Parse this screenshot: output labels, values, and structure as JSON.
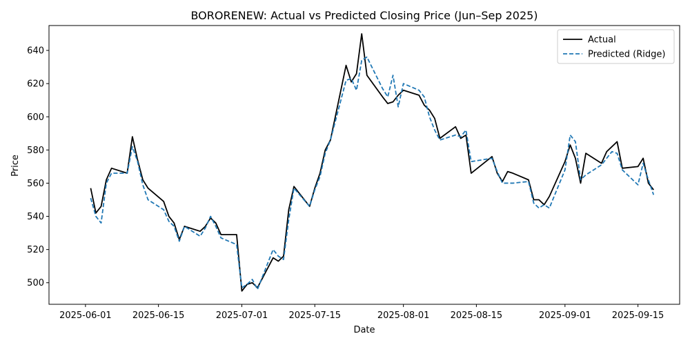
{
  "chart_data": {
    "type": "line",
    "title": "BORORENEW: Actual vs Predicted Closing Price (Jun–Sep 2025)",
    "xlabel": "Date",
    "ylabel": "Price",
    "xlim": [
      "2025-05-25",
      "2025-09-23"
    ],
    "ylim": [
      487,
      655
    ],
    "x_ticks": [
      "2025-06-01",
      "2025-06-15",
      "2025-07-01",
      "2025-07-15",
      "2025-08-01",
      "2025-08-15",
      "2025-09-01",
      "2025-09-15"
    ],
    "y_ticks": [
      500,
      520,
      540,
      560,
      580,
      600,
      620,
      640
    ],
    "grid": false,
    "legend_position": "top-right",
    "series": [
      {
        "name": "Actual",
        "color": "#000000",
        "style": "solid",
        "points": [
          [
            "2025-06-02",
            557
          ],
          [
            "2025-06-03",
            542
          ],
          [
            "2025-06-04",
            546
          ],
          [
            "2025-06-05",
            562
          ],
          [
            "2025-06-06",
            569
          ],
          [
            "2025-06-09",
            566
          ],
          [
            "2025-06-10",
            588
          ],
          [
            "2025-06-11",
            574
          ],
          [
            "2025-06-12",
            562
          ],
          [
            "2025-06-13",
            557
          ],
          [
            "2025-06-16",
            549
          ],
          [
            "2025-06-17",
            540
          ],
          [
            "2025-06-18",
            536
          ],
          [
            "2025-06-19",
            526
          ],
          [
            "2025-06-20",
            534
          ],
          [
            "2025-06-23",
            531
          ],
          [
            "2025-06-24",
            534
          ],
          [
            "2025-06-25",
            539
          ],
          [
            "2025-06-26",
            536
          ],
          [
            "2025-06-27",
            529
          ],
          [
            "2025-06-30",
            529
          ],
          [
            "2025-07-01",
            495
          ],
          [
            "2025-07-02",
            499
          ],
          [
            "2025-07-03",
            500
          ],
          [
            "2025-07-04",
            497
          ],
          [
            "2025-07-07",
            515
          ],
          [
            "2025-07-08",
            513
          ],
          [
            "2025-07-09",
            516
          ],
          [
            "2025-07-10",
            544
          ],
          [
            "2025-07-11",
            558
          ],
          [
            "2025-07-14",
            546
          ],
          [
            "2025-07-15",
            557
          ],
          [
            "2025-07-16",
            566
          ],
          [
            "2025-07-17",
            580
          ],
          [
            "2025-07-18",
            586
          ],
          [
            "2025-07-21",
            631
          ],
          [
            "2025-07-22",
            621
          ],
          [
            "2025-07-23",
            626
          ],
          [
            "2025-07-24",
            650
          ],
          [
            "2025-07-25",
            625
          ],
          [
            "2025-07-28",
            612
          ],
          [
            "2025-07-29",
            608
          ],
          [
            "2025-07-30",
            609
          ],
          [
            "2025-07-31",
            613
          ],
          [
            "2025-08-01",
            616
          ],
          [
            "2025-08-04",
            613
          ],
          [
            "2025-08-05",
            607
          ],
          [
            "2025-08-06",
            604
          ],
          [
            "2025-08-07",
            599
          ],
          [
            "2025-08-08",
            587
          ],
          [
            "2025-08-11",
            594
          ],
          [
            "2025-08-12",
            587
          ],
          [
            "2025-08-13",
            589
          ],
          [
            "2025-08-14",
            566
          ],
          [
            "2025-08-18",
            576
          ],
          [
            "2025-08-19",
            566
          ],
          [
            "2025-08-20",
            561
          ],
          [
            "2025-08-21",
            567
          ],
          [
            "2025-08-22",
            566
          ],
          [
            "2025-08-25",
            562
          ],
          [
            "2025-08-26",
            550
          ],
          [
            "2025-08-27",
            550
          ],
          [
            "2025-08-28",
            547
          ],
          [
            "2025-08-29",
            552
          ],
          [
            "2025-09-01",
            573
          ],
          [
            "2025-09-02",
            583
          ],
          [
            "2025-09-03",
            575
          ],
          [
            "2025-09-04",
            560
          ],
          [
            "2025-09-05",
            578
          ],
          [
            "2025-09-08",
            572
          ],
          [
            "2025-09-09",
            579
          ],
          [
            "2025-09-10",
            582
          ],
          [
            "2025-09-11",
            585
          ],
          [
            "2025-09-12",
            569
          ],
          [
            "2025-09-15",
            570
          ],
          [
            "2025-09-16",
            575
          ],
          [
            "2025-09-17",
            560
          ],
          [
            "2025-09-18",
            556
          ]
        ]
      },
      {
        "name": "Predicted (Ridge)",
        "color": "#1f77b4",
        "style": "dashed",
        "points": [
          [
            "2025-06-02",
            551
          ],
          [
            "2025-06-03",
            540
          ],
          [
            "2025-06-04",
            536
          ],
          [
            "2025-06-05",
            560
          ],
          [
            "2025-06-06",
            566
          ],
          [
            "2025-06-09",
            566
          ],
          [
            "2025-06-10",
            582
          ],
          [
            "2025-06-11",
            573
          ],
          [
            "2025-06-12",
            559
          ],
          [
            "2025-06-13",
            550
          ],
          [
            "2025-06-16",
            544
          ],
          [
            "2025-06-17",
            537
          ],
          [
            "2025-06-18",
            534
          ],
          [
            "2025-06-19",
            525
          ],
          [
            "2025-06-20",
            534
          ],
          [
            "2025-06-23",
            528
          ],
          [
            "2025-06-24",
            533
          ],
          [
            "2025-06-25",
            540
          ],
          [
            "2025-06-26",
            534
          ],
          [
            "2025-06-27",
            527
          ],
          [
            "2025-06-30",
            523
          ],
          [
            "2025-07-01",
            497
          ],
          [
            "2025-07-02",
            499
          ],
          [
            "2025-07-03",
            502
          ],
          [
            "2025-07-04",
            496
          ],
          [
            "2025-07-07",
            520
          ],
          [
            "2025-07-08",
            516
          ],
          [
            "2025-07-09",
            514
          ],
          [
            "2025-07-10",
            538
          ],
          [
            "2025-07-11",
            557
          ],
          [
            "2025-07-14",
            546
          ],
          [
            "2025-07-15",
            556
          ],
          [
            "2025-07-16",
            564
          ],
          [
            "2025-07-17",
            578
          ],
          [
            "2025-07-18",
            586
          ],
          [
            "2025-07-21",
            622
          ],
          [
            "2025-07-22",
            623
          ],
          [
            "2025-07-23",
            616
          ],
          [
            "2025-07-24",
            634
          ],
          [
            "2025-07-25",
            636
          ],
          [
            "2025-07-28",
            617
          ],
          [
            "2025-07-29",
            612
          ],
          [
            "2025-07-30",
            625
          ],
          [
            "2025-07-31",
            606
          ],
          [
            "2025-08-01",
            620
          ],
          [
            "2025-08-04",
            616
          ],
          [
            "2025-08-05",
            612
          ],
          [
            "2025-08-06",
            600
          ],
          [
            "2025-08-07",
            592
          ],
          [
            "2025-08-08",
            586
          ],
          [
            "2025-08-11",
            589
          ],
          [
            "2025-08-12",
            588
          ],
          [
            "2025-08-13",
            592
          ],
          [
            "2025-08-14",
            573
          ],
          [
            "2025-08-18",
            575
          ],
          [
            "2025-08-19",
            567
          ],
          [
            "2025-08-20",
            560
          ],
          [
            "2025-08-21",
            560
          ],
          [
            "2025-08-22",
            560
          ],
          [
            "2025-08-25",
            561
          ],
          [
            "2025-08-26",
            548
          ],
          [
            "2025-08-27",
            545
          ],
          [
            "2025-08-28",
            547
          ],
          [
            "2025-08-29",
            545
          ],
          [
            "2025-09-01",
            568
          ],
          [
            "2025-09-02",
            589
          ],
          [
            "2025-09-03",
            585
          ],
          [
            "2025-09-04",
            562
          ],
          [
            "2025-09-05",
            565
          ],
          [
            "2025-09-08",
            571
          ],
          [
            "2025-09-09",
            575
          ],
          [
            "2025-09-10",
            579
          ],
          [
            "2025-09-11",
            578
          ],
          [
            "2025-09-12",
            568
          ],
          [
            "2025-09-15",
            559
          ],
          [
            "2025-09-16",
            572
          ],
          [
            "2025-09-17",
            562
          ],
          [
            "2025-09-18",
            553
          ]
        ]
      }
    ]
  }
}
